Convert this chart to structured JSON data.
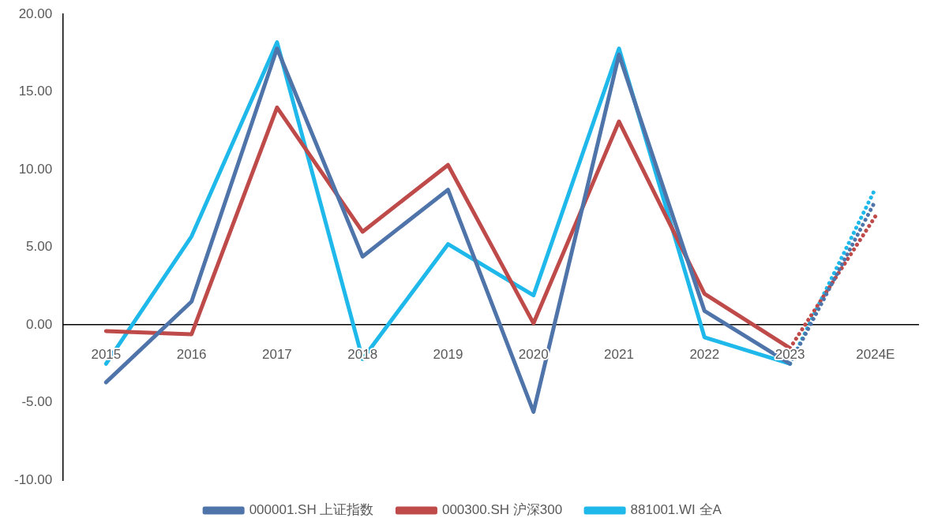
{
  "chart_data": {
    "type": "line",
    "categories": [
      "2015",
      "2016",
      "2017",
      "2018",
      "2019",
      "2020",
      "2021",
      "2022",
      "2023",
      "2024E"
    ],
    "series": [
      {
        "name": "000001.SH 上证指数",
        "color": "#4f74aa",
        "values": [
          -3.7,
          1.5,
          17.8,
          4.4,
          8.7,
          -5.6,
          17.4,
          0.9,
          -2.5,
          null
        ]
      },
      {
        "name": "000300.SH 沪深300",
        "color": "#bf4a4a",
        "values": [
          -0.4,
          -0.6,
          14.0,
          6.0,
          10.3,
          0.1,
          13.1,
          2.0,
          -1.5,
          null
        ]
      },
      {
        "name": "881001.WI 全A",
        "color": "#1fb8ea",
        "values": [
          -2.5,
          5.7,
          18.2,
          -2.2,
          5.2,
          1.9,
          17.8,
          -0.8,
          -2.5,
          null
        ]
      },
      {
        "color": "#4f74aa",
        "line_style": "dotted",
        "values": [
          null,
          null,
          null,
          null,
          null,
          null,
          null,
          null,
          -2.5,
          8.0
        ]
      },
      {
        "color": "#bf4a4a",
        "line_style": "dotted",
        "values": [
          null,
          null,
          null,
          null,
          null,
          null,
          null,
          null,
          -1.5,
          7.0
        ]
      },
      {
        "color": "#1fb8ea",
        "line_style": "dotted",
        "values": [
          null,
          null,
          null,
          null,
          null,
          null,
          null,
          null,
          -2.5,
          8.8
        ]
      }
    ],
    "ylim": [
      -10,
      20
    ],
    "yticks": [
      {
        "value": -10,
        "label": "-10.00"
      },
      {
        "value": -5,
        "label": "-5.00"
      },
      {
        "value": 0,
        "label": "0.00"
      },
      {
        "value": 5,
        "label": "5.00"
      },
      {
        "value": 10,
        "label": "10.00"
      },
      {
        "value": 15,
        "label": "15.00"
      },
      {
        "value": 20,
        "label": "20.00"
      }
    ],
    "grid": false,
    "legend": "bottom",
    "marker": "none",
    "line_style": "solid"
  }
}
